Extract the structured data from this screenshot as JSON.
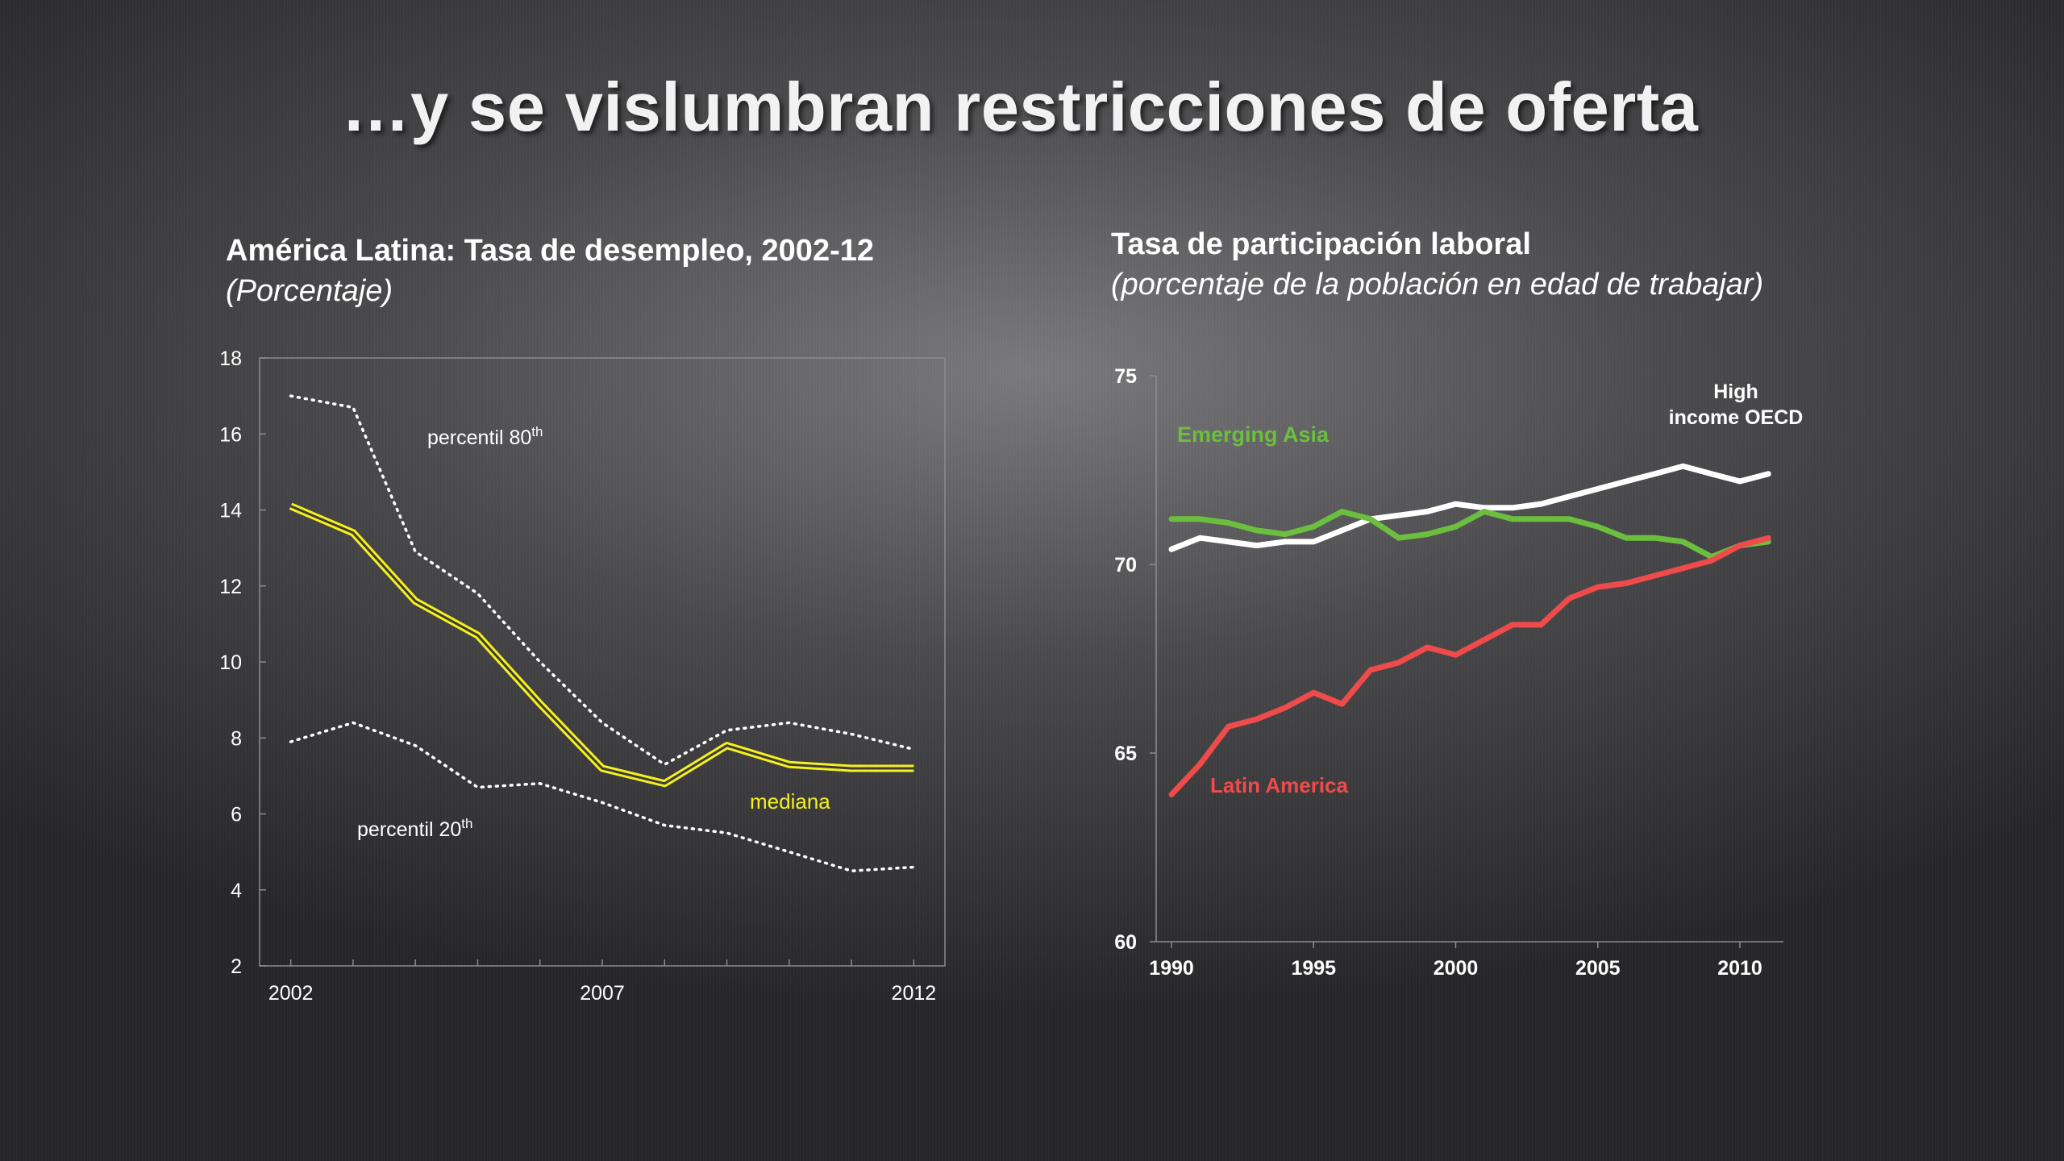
{
  "title": "…y se vislumbran restricciones de oferta",
  "left_heading": {
    "main": "América Latina: Tasa de desempleo, 2002-12",
    "sub": "(Porcentaje)"
  },
  "right_heading": {
    "main": "Tasa de participación laboral",
    "sub": "(porcentaje de la población en edad de trabajar)"
  },
  "colors": {
    "median": "#f5f01e",
    "percentile": "#ffffff",
    "emerging_asia": "#6cbf3e",
    "high_income_oecd": "#ffffff",
    "latin_america": "#ef4b4b"
  },
  "chart_data": [
    {
      "type": "line",
      "title": "América Latina: Tasa de desempleo, 2002-12",
      "subtitle": "(Porcentaje)",
      "xlabel": "",
      "ylabel": "",
      "x": [
        2002,
        2003,
        2004,
        2005,
        2006,
        2007,
        2008,
        2009,
        2010,
        2011,
        2012
      ],
      "xlim": [
        2001.5,
        2012.5
      ],
      "ylim": [
        2,
        18
      ],
      "yticks": [
        "2",
        "4",
        "6",
        "8",
        "10",
        "12",
        "14",
        "16",
        "18"
      ],
      "xtick_labels": [
        "2002",
        "2007",
        "2012"
      ],
      "legend": "none",
      "grid": false,
      "series": [
        {
          "name": "percentil 80",
          "name_sup": "th",
          "style": "dotted",
          "values": [
            17.0,
            16.7,
            12.9,
            11.8,
            10.0,
            8.4,
            7.3,
            8.2,
            8.4,
            8.1,
            7.7
          ]
        },
        {
          "name": "mediana",
          "style": "double",
          "values": [
            14.1,
            13.4,
            11.6,
            10.7,
            8.9,
            7.2,
            6.8,
            7.8,
            7.3,
            7.2,
            7.2
          ]
        },
        {
          "name": "percentil 20",
          "name_sup": "th",
          "style": "dotted",
          "values": [
            7.9,
            8.4,
            7.8,
            6.7,
            6.8,
            6.3,
            5.7,
            5.5,
            5.0,
            4.5,
            4.6
          ]
        }
      ]
    },
    {
      "type": "line",
      "title": "Tasa de participación laboral",
      "subtitle": "(porcentaje de la población en edad de trabajar)",
      "xlabel": "",
      "ylabel": "",
      "x": [
        1990,
        1991,
        1992,
        1993,
        1994,
        1995,
        1996,
        1997,
        1998,
        1999,
        2000,
        2001,
        2002,
        2003,
        2004,
        2005,
        2006,
        2007,
        2008,
        2009,
        2010,
        2011
      ],
      "xlim": [
        1990,
        2011.5
      ],
      "ylim": [
        60,
        75
      ],
      "yticks": [
        "60",
        "65",
        "70",
        "75"
      ],
      "xtick_labels": [
        "1990",
        "1995",
        "2000",
        "2005",
        "2010"
      ],
      "legend": "none",
      "grid": false,
      "series": [
        {
          "name": "Emerging Asia",
          "values": [
            71.2,
            71.2,
            71.1,
            70.9,
            70.8,
            71.0,
            71.4,
            71.2,
            70.7,
            70.8,
            71.0,
            71.4,
            71.2,
            71.2,
            71.2,
            71.0,
            70.7,
            70.7,
            70.6,
            70.2,
            70.5,
            70.6
          ]
        },
        {
          "name": "High income OECD",
          "name_lines": [
            "High",
            "income OECD"
          ],
          "values": [
            70.4,
            70.7,
            70.6,
            70.5,
            70.6,
            70.6,
            70.9,
            71.2,
            71.3,
            71.4,
            71.6,
            71.5,
            71.5,
            71.6,
            71.8,
            72.0,
            72.2,
            72.4,
            72.6,
            72.4,
            72.2,
            72.4
          ]
        },
        {
          "name": "Latin America",
          "values": [
            63.9,
            64.7,
            65.7,
            65.9,
            66.2,
            66.6,
            66.3,
            67.2,
            67.4,
            67.8,
            67.6,
            68.0,
            68.4,
            68.4,
            69.1,
            69.4,
            69.5,
            69.7,
            69.9,
            70.1,
            70.5,
            70.7
          ]
        }
      ]
    }
  ]
}
